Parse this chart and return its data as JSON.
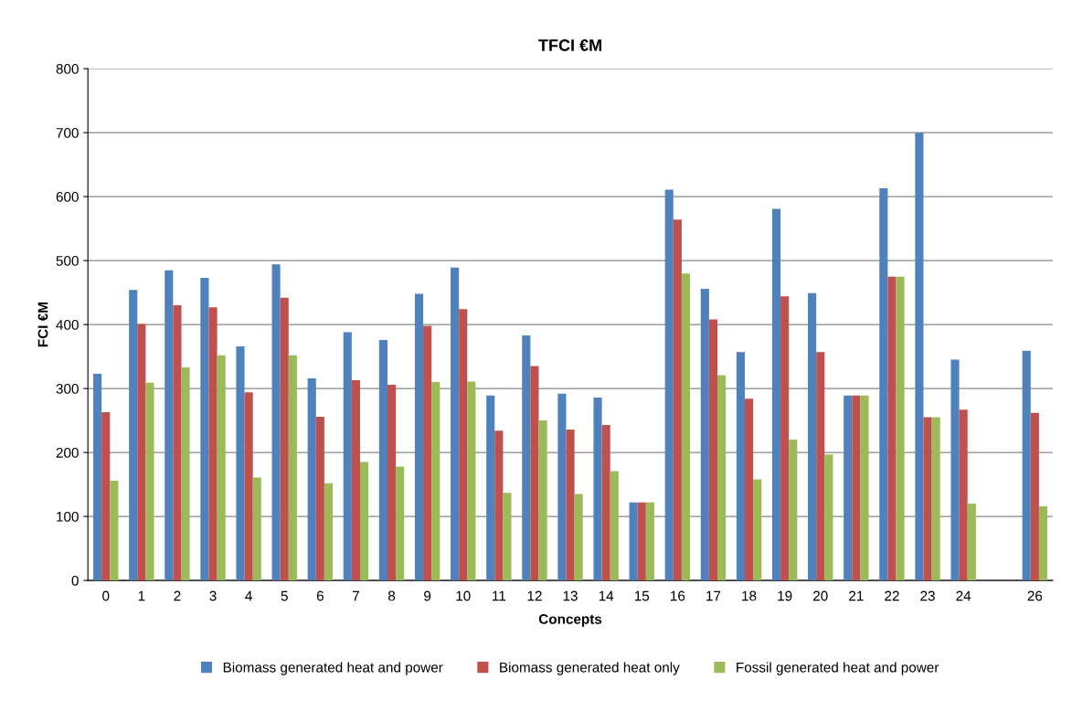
{
  "chart_data": {
    "type": "bar",
    "title": "TFCI €M",
    "xlabel": "Concepts",
    "ylabel": "FCI €M",
    "categories": [
      "0",
      "1",
      "2",
      "3",
      "4",
      "5",
      "6",
      "7",
      "8",
      "9",
      "10",
      "11",
      "12",
      "13",
      "14",
      "15",
      "16",
      "17",
      "18",
      "19",
      "20",
      "21",
      "22",
      "23",
      "24",
      null,
      "26"
    ],
    "series": [
      {
        "name": "Biomass generated heat and power",
        "color": "#4f81bd",
        "values": [
          323,
          454,
          485,
          473,
          366,
          494,
          316,
          388,
          376,
          448,
          489,
          289,
          383,
          292,
          286,
          122,
          611,
          456,
          357,
          581,
          449,
          289,
          613,
          700,
          345,
          null,
          359
        ]
      },
      {
        "name": "Biomass generated heat only",
        "color": "#c0504d",
        "values": [
          263,
          401,
          430,
          427,
          294,
          442,
          256,
          313,
          306,
          398,
          424,
          234,
          335,
          236,
          243,
          122,
          564,
          408,
          284,
          444,
          357,
          289,
          475,
          255,
          267,
          null,
          262
        ]
      },
      {
        "name": "Fossil generated heat and power",
        "color": "#9bbb59",
        "values": [
          156,
          309,
          333,
          352,
          161,
          352,
          152,
          185,
          178,
          310,
          311,
          137,
          250,
          135,
          171,
          122,
          480,
          321,
          158,
          220,
          197,
          289,
          475,
          255,
          120,
          null,
          116
        ]
      }
    ],
    "ylim": [
      0,
      800
    ],
    "yticks": [
      0,
      100,
      200,
      300,
      400,
      500,
      600,
      700,
      800
    ],
    "grid": "y",
    "legend": "bottom"
  }
}
